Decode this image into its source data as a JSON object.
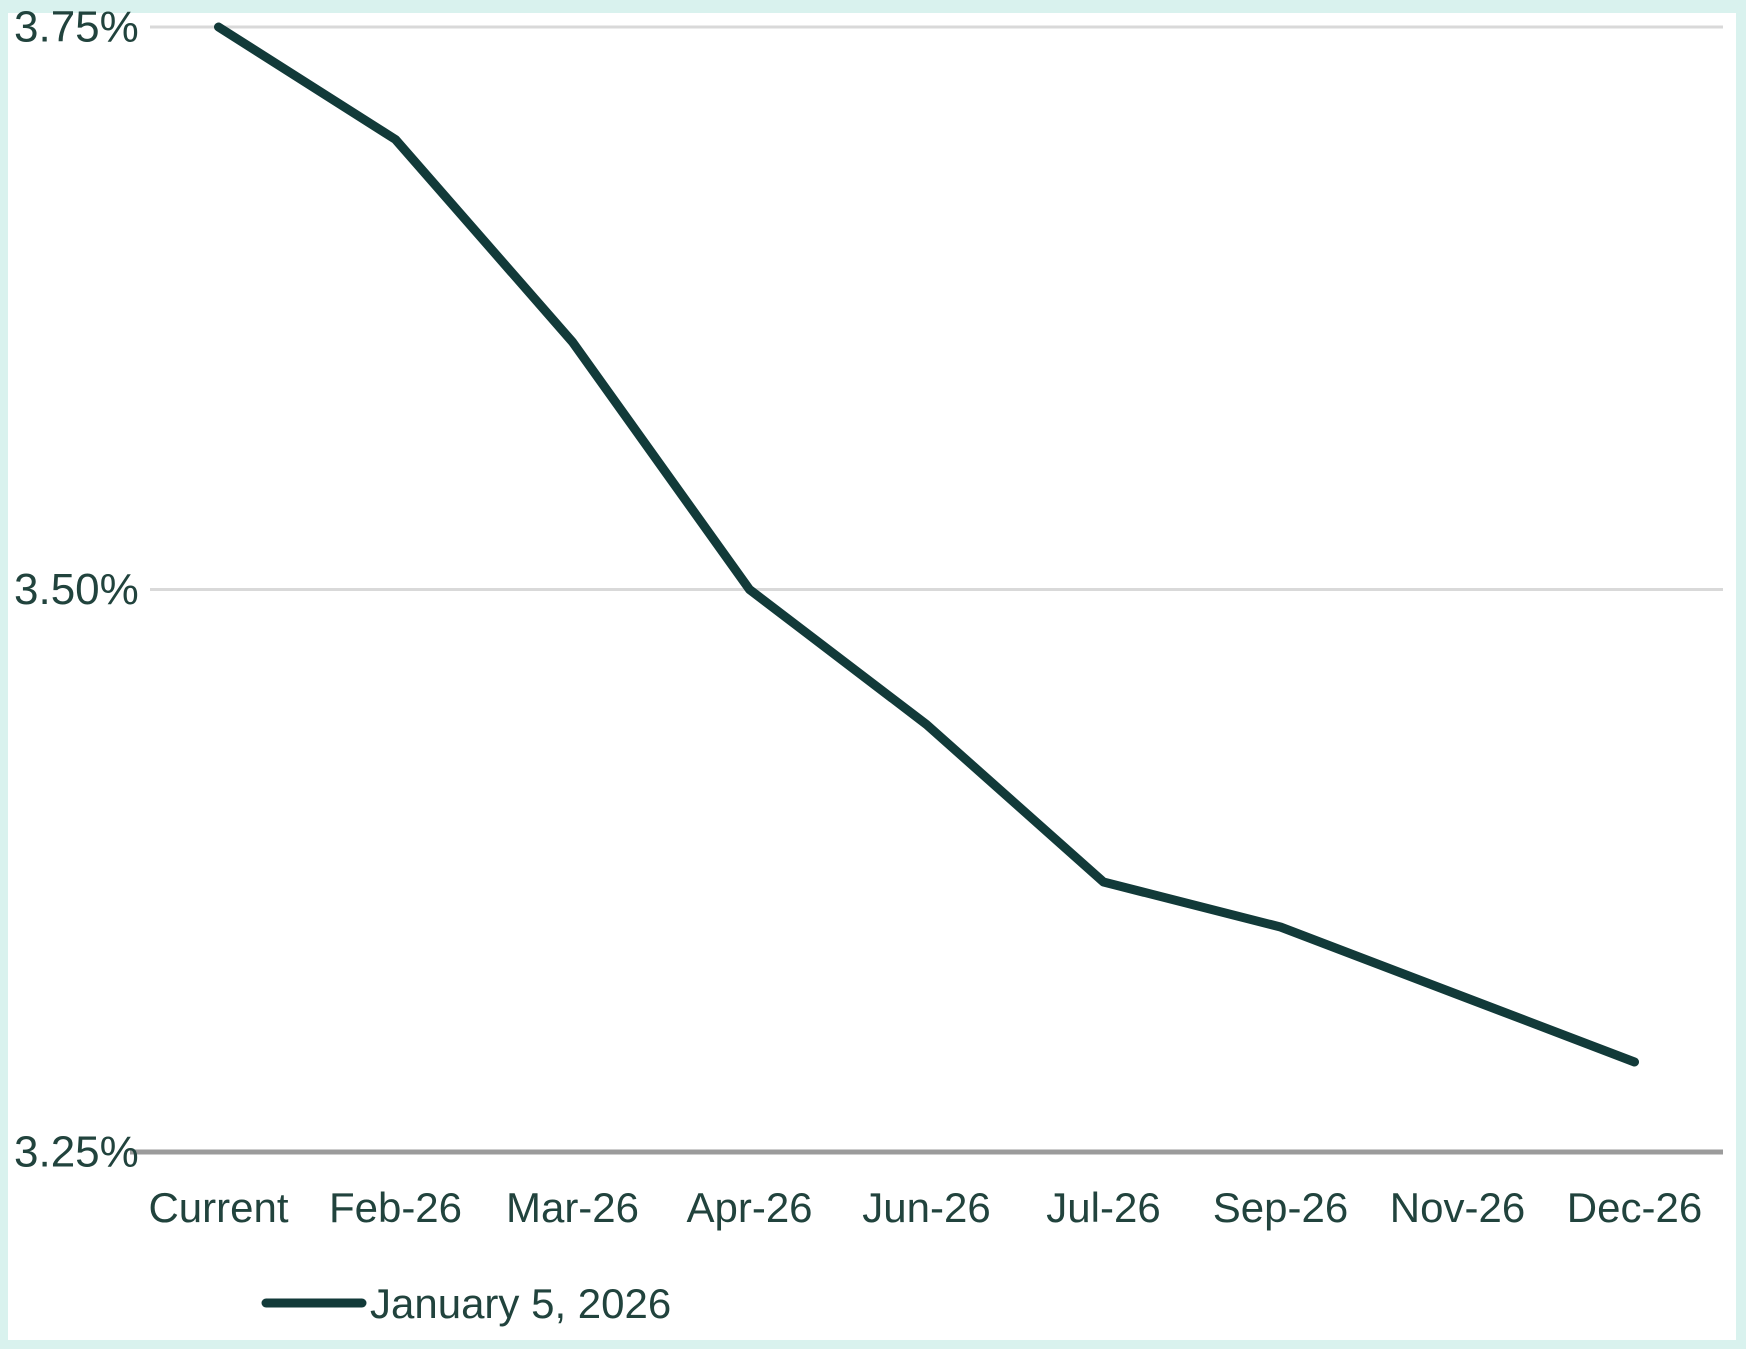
{
  "chart_data": {
    "type": "line",
    "title": "",
    "xlabel": "",
    "ylabel": "",
    "categories": [
      "Current",
      "Feb-26",
      "Mar-26",
      "Apr-26",
      "Jun-26",
      "Jul-26",
      "Sep-26",
      "Nov-26",
      "Dec-26"
    ],
    "series": [
      {
        "name": "January 5, 2026",
        "values": [
          3.75,
          3.7,
          3.61,
          3.5,
          3.44,
          3.37,
          3.35,
          3.32,
          3.29
        ]
      }
    ],
    "ylim": [
      3.25,
      3.75
    ],
    "yticks": [
      {
        "value": 3.75,
        "label": "3.75%"
      },
      {
        "value": 3.5,
        "label": "3.50%"
      },
      {
        "value": 3.25,
        "label": "3.25%"
      }
    ],
    "grid": "horizontal",
    "legend_position": "bottom-left"
  },
  "colors": {
    "line": "#123a39",
    "text": "#21433d",
    "gridline": "#d9d9d9",
    "axis_line": "#9b9b9b",
    "frame_border": "#d9f2ee",
    "background": "#ffffff"
  }
}
